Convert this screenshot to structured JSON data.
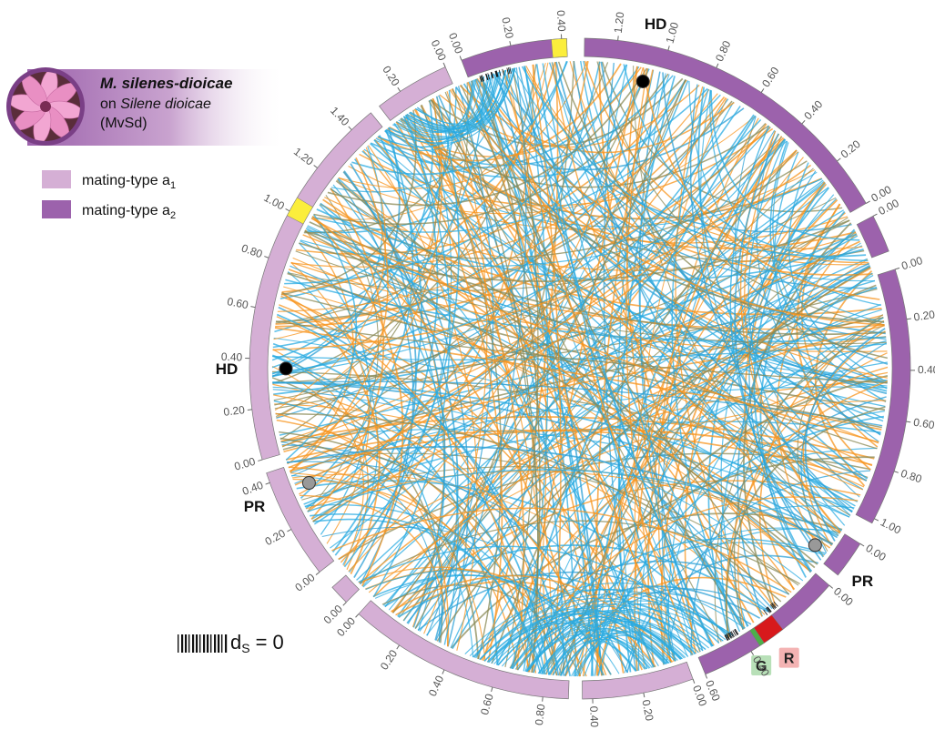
{
  "header": {
    "species": "M. silenes-dioicae",
    "host_prefix": "on",
    "host": "Silene dioicae",
    "code": "(MvSd)"
  },
  "legend": [
    {
      "label": "mating-type a",
      "subscript": "1",
      "color": "#d5afd5"
    },
    {
      "label": "mating-type a",
      "subscript": "2",
      "color": "#9c62ac"
    }
  ],
  "segments": [
    {
      "legend": 1,
      "length": 1.33,
      "reversed": true,
      "ticks": [
        {
          "value": 0,
          "label": "0.00"
        },
        {
          "value": 0.2,
          "label": "0.20"
        },
        {
          "value": 0.4,
          "label": "0.40"
        },
        {
          "value": 0.6,
          "label": "0.60"
        },
        {
          "value": 0.8,
          "label": "0.80"
        },
        {
          "value": 1,
          "label": "1.00"
        },
        {
          "value": 1.2,
          "label": "1.20"
        }
      ],
      "highlights": []
    },
    {
      "legend": 1,
      "length": 0.15,
      "reversed": false,
      "ticks": [
        {
          "value": 0,
          "label": "0.00"
        }
      ],
      "highlights": []
    },
    {
      "legend": 1,
      "length": 1.02,
      "reversed": false,
      "ticks": [
        {
          "value": 0,
          "label": "0.00"
        },
        {
          "value": 0.2,
          "label": "0.20"
        },
        {
          "value": 0.4,
          "label": "0.40"
        },
        {
          "value": 0.6,
          "label": "0.60"
        },
        {
          "value": 0.8,
          "label": "0.80"
        },
        {
          "value": 1,
          "label": "1.00"
        }
      ],
      "highlights": []
    },
    {
      "legend": 1,
      "length": 0.15,
      "reversed": false,
      "ticks": [
        {
          "value": 0,
          "label": "0.00"
        }
      ],
      "highlights": []
    },
    {
      "legend": 1,
      "length": 0.6,
      "reversed": false,
      "ticks": [
        {
          "value": 0,
          "label": "0.00"
        },
        {
          "value": 0.4,
          "label": "0.40"
        },
        {
          "value": 0.6,
          "label": "0.60"
        }
      ],
      "highlights": [
        {
          "start": 0.25,
          "end": 0.34,
          "color": "#d7191c",
          "label": "R",
          "label_color": "#f4b3b3"
        },
        {
          "start": 0.34,
          "end": 0.36,
          "color": "#4daf4a",
          "label": "G",
          "label_color": "#b8e0b8"
        }
      ]
    },
    {
      "legend": 0,
      "length": 0.44,
      "reversed": false,
      "ticks": [
        {
          "value": 0,
          "label": "0.00"
        },
        {
          "value": 0.2,
          "label": "0.20"
        },
        {
          "value": 0.4,
          "label": "0.40"
        }
      ],
      "highlights": []
    },
    {
      "legend": 0,
      "length": 0.9,
      "reversed": true,
      "ticks": [
        {
          "value": 0,
          "label": "0.00"
        },
        {
          "value": 0.2,
          "label": "0.20"
        },
        {
          "value": 0.4,
          "label": "0.40"
        },
        {
          "value": 0.6,
          "label": "0.60"
        },
        {
          "value": 0.8,
          "label": "0.80"
        }
      ],
      "highlights": []
    },
    {
      "legend": 0,
      "length": 0.08,
      "reversed": false,
      "ticks": [
        {
          "value": 0,
          "label": "0.00"
        }
      ],
      "highlights": []
    },
    {
      "legend": 0,
      "length": 0.44,
      "reversed": false,
      "ticks": [
        {
          "value": 0,
          "label": "0.00"
        },
        {
          "value": 0.2,
          "label": "0.20"
        },
        {
          "value": 0.4,
          "label": "0.40"
        }
      ],
      "highlights": []
    },
    {
      "legend": 0,
      "length": 1.5,
      "reversed": false,
      "ticks": [
        {
          "value": 0,
          "label": "0.00"
        },
        {
          "value": 0.2,
          "label": "0.20"
        },
        {
          "value": 0.4,
          "label": "0.40"
        },
        {
          "value": 0.6,
          "label": "0.60"
        },
        {
          "value": 0.8,
          "label": "0.80"
        },
        {
          "value": 1,
          "label": "1.00"
        },
        {
          "value": 1.2,
          "label": "1.20"
        },
        {
          "value": 1.4,
          "label": "1.40"
        }
      ],
      "highlights": [
        {
          "start": 0.98,
          "end": 1.06,
          "color": "#fbee3c"
        }
      ]
    },
    {
      "legend": 0,
      "length": 0.3,
      "reversed": true,
      "ticks": [
        {
          "value": 0,
          "label": "0.00"
        },
        {
          "value": 0.2,
          "label": "0.20"
        }
      ],
      "highlights": []
    },
    {
      "legend": 1,
      "length": 0.42,
      "reversed": false,
      "ticks": [
        {
          "value": 0,
          "label": "0.00"
        },
        {
          "value": 0.2,
          "label": "0.20"
        },
        {
          "value": 0.4,
          "label": "0.40"
        }
      ],
      "highlights": [
        {
          "start": 0.36,
          "end": 0.42,
          "color": "#fbee3c"
        }
      ]
    }
  ],
  "markers": [
    {
      "label": "HD",
      "segment": 0,
      "position": 1.07,
      "color": "#000000"
    },
    {
      "label": "HD",
      "segment": 9,
      "position": 0.36,
      "color": "#000000"
    },
    {
      "label": "PR",
      "segment": 8,
      "position": 0.34,
      "color": "#999999"
    },
    {
      "label": "PR",
      "segment": 3,
      "position": 0.11,
      "color": "#999999"
    }
  ],
  "ds_legend": {
    "symbol": "d",
    "subscript": "S",
    "text": "= 0"
  }
}
